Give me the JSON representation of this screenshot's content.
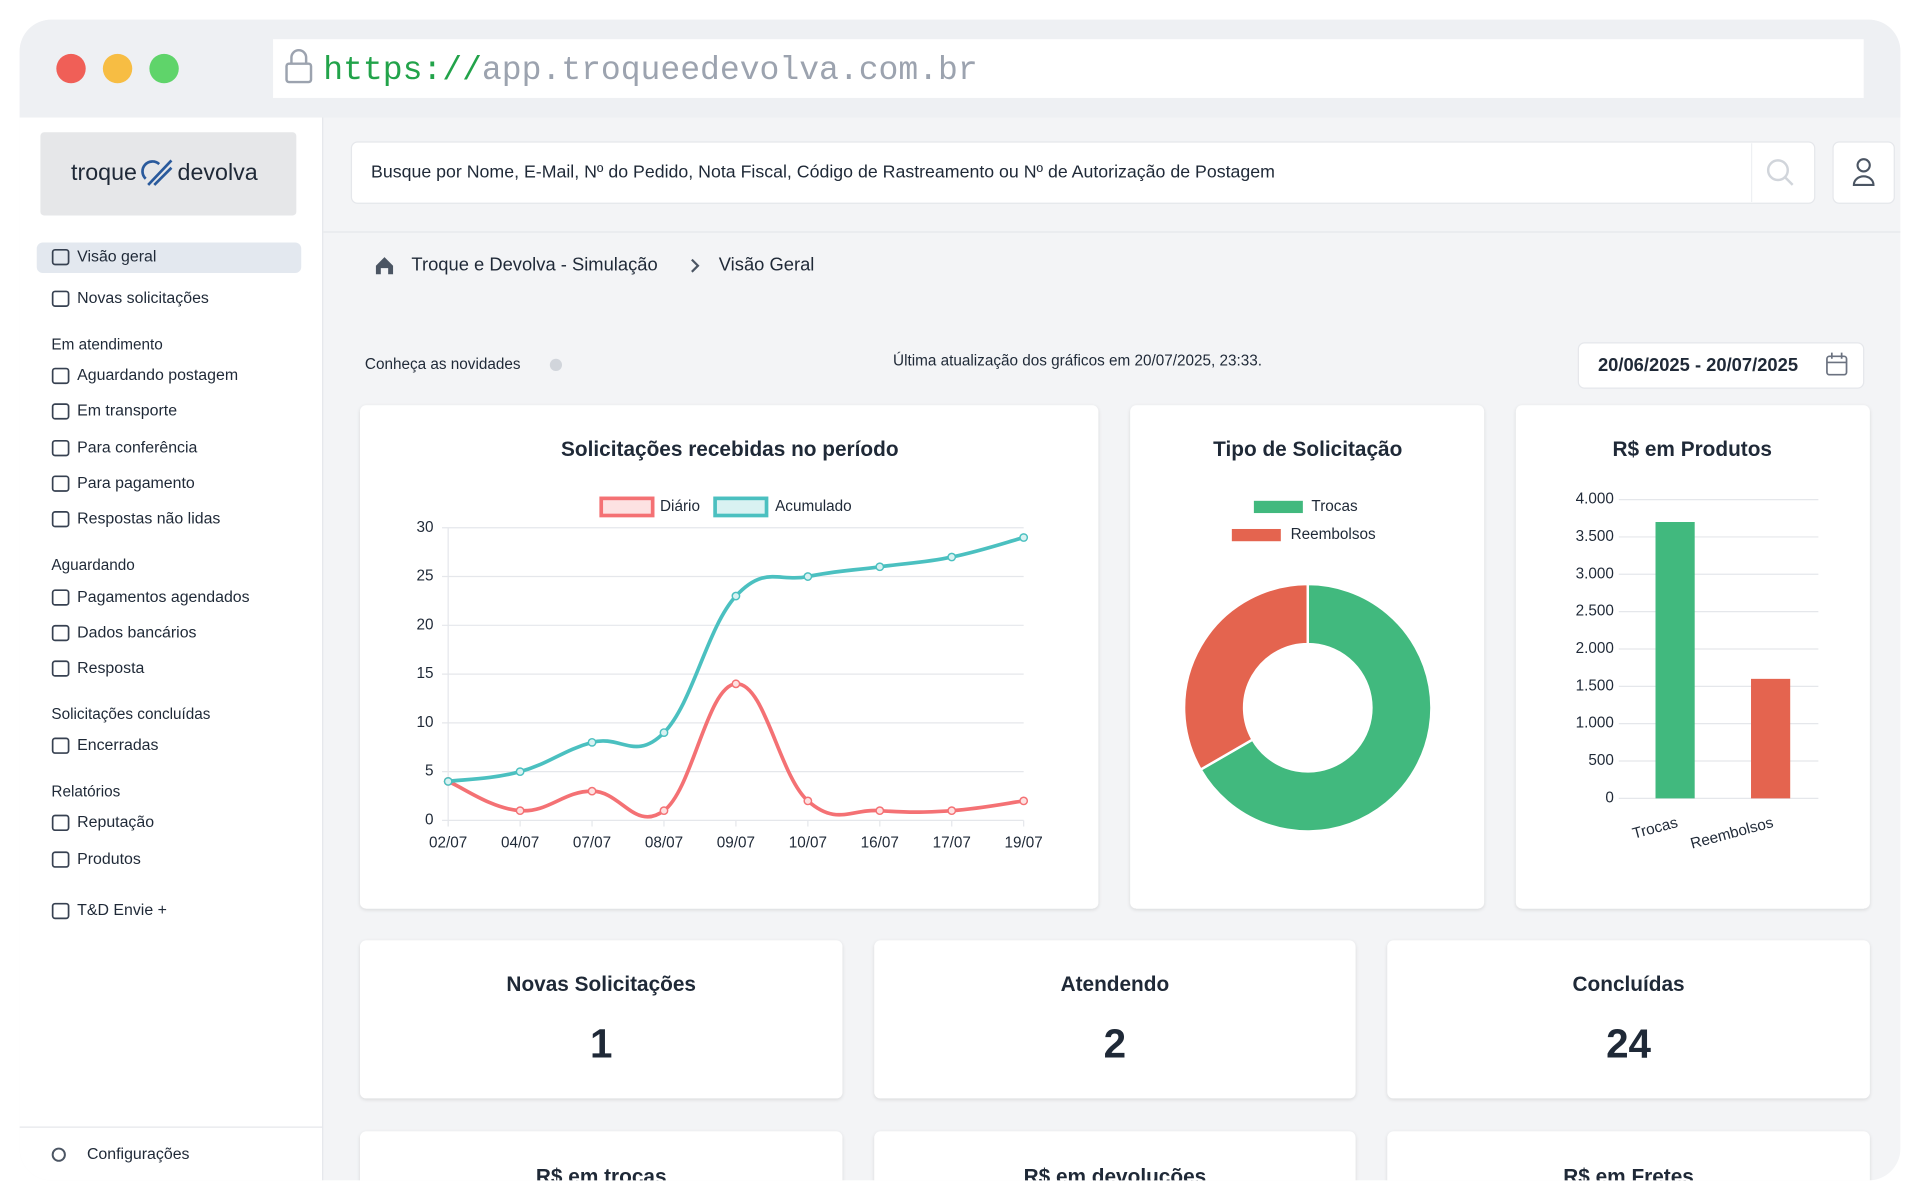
{
  "browser": {
    "url_scheme": "https://",
    "url_host": "app.troqueedevolva.com.br"
  },
  "sidebar": {
    "logo": {
      "left": "troque",
      "right": "devolva"
    },
    "main_items": [
      "Visão geral",
      "Novas solicitações"
    ],
    "groups": [
      {
        "heading": "Em atendimento",
        "items": [
          "Aguardando postagem",
          "Em transporte",
          "Para conferência",
          "Para pagamento",
          "Respostas não lidas"
        ]
      },
      {
        "heading": "Aguardando",
        "items": [
          "Pagamentos agendados",
          "Dados bancários",
          "Resposta"
        ]
      },
      {
        "heading": "Solicitações concluídas",
        "items": [
          "Encerradas"
        ]
      },
      {
        "heading": "Relatórios",
        "items": [
          "Reputação",
          "Produtos"
        ]
      }
    ],
    "extra_items": [
      "T&D Envie +"
    ],
    "footer": "Configurações"
  },
  "header": {
    "search_placeholder": "Busque por Nome, E-Mail, Nº do Pedido, Nota Fiscal, Código de Rastreamento ou Nº de Autorização de Postagem",
    "breadcrumb": [
      "Troque e Devolva - Simulação",
      "Visão Geral"
    ]
  },
  "toolbar": {
    "news": "Conheça as novidades",
    "last_update": "Última atualização dos gráficos em 20/07/2025, 23:33.",
    "date_range": "20/06/2025 - 20/07/2025"
  },
  "chart_data": [
    {
      "type": "line",
      "title": "Solicitações recebidas no período",
      "categories": [
        "02/07",
        "04/07",
        "07/07",
        "08/07",
        "09/07",
        "10/07",
        "16/07",
        "17/07",
        "19/07"
      ],
      "series": [
        {
          "name": "Diário",
          "color": "#f47174",
          "fill": "#fde2e2",
          "values": [
            4,
            1,
            3,
            1,
            14,
            2,
            1,
            1,
            2
          ]
        },
        {
          "name": "Acumulado",
          "color": "#4bc0c0",
          "fill": "#d9f2f2",
          "values": [
            4,
            5,
            8,
            9,
            23,
            25,
            26,
            27,
            29
          ]
        }
      ],
      "ylim": [
        0,
        30
      ],
      "yticks": [
        0,
        5,
        10,
        15,
        20,
        25,
        30
      ],
      "grid": true
    },
    {
      "type": "donut",
      "title": "Tipo de Solicitação",
      "categories": [
        "Trocas",
        "Reembolsos"
      ],
      "values": [
        18,
        9
      ],
      "colors": [
        "#41b97e",
        "#e4644f"
      ]
    },
    {
      "type": "bar",
      "title": "R$ em Produtos",
      "categories": [
        "Trocas",
        "Reembolsos"
      ],
      "values": [
        3700,
        1600
      ],
      "colors": [
        "#41b97e",
        "#e4644f"
      ],
      "ylim": [
        0,
        4000
      ],
      "yticks": [
        0,
        500,
        {
          "value": 1000,
          "label": "1.000"
        },
        {
          "value": 1500,
          "label": "1.500"
        },
        {
          "value": 2000,
          "label": "2.000"
        },
        {
          "value": 2500,
          "label": "2.500"
        },
        {
          "value": 3000,
          "label": "3.000"
        },
        {
          "value": 3500,
          "label": "3.500"
        },
        {
          "value": 4000,
          "label": "4.000"
        }
      ],
      "grid": true
    }
  ],
  "stats": [
    {
      "title": "Novas Solicitações",
      "value": 1,
      "color": "#dc2626"
    },
    {
      "title": "Atendendo",
      "value": 2,
      "color": "#ca8a04"
    },
    {
      "title": "Concluídas",
      "value": 24,
      "color": "#15803d"
    }
  ],
  "bottom_cards": [
    "R$ em trocas",
    "R$ em devoluções",
    "R$ em Fretes"
  ]
}
